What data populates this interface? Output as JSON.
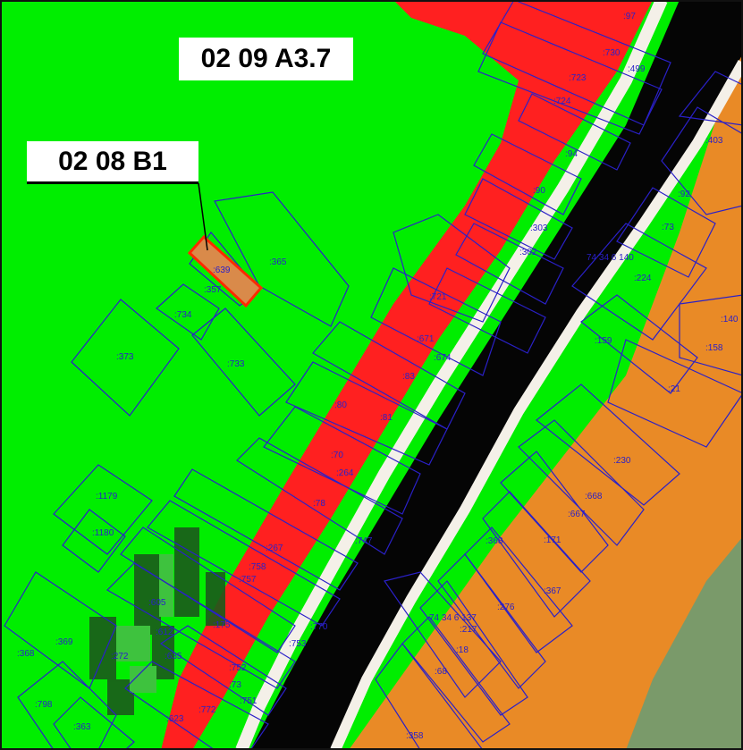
{
  "zones": {
    "label_a37": "02 09 A3.7",
    "label_b1": "02 08 B1"
  },
  "colors": {
    "green_zone": "#00ee00",
    "red_zone": "#ff0000",
    "black_road": "#050505",
    "orange_zone": "#e98a26",
    "gray_green": "#7a9a6a",
    "parcel_outline_blue": "#2a20c8",
    "highlight_fill": "#d98a4a",
    "highlight_stroke": "#ff2a00",
    "frame": "#111111"
  },
  "highlighted_parcel": ":639",
  "parcel_numbers": [
    ":97",
    ":730",
    ":499",
    ":723",
    ":724",
    ":94",
    ":90",
    ":303",
    ":302",
    ":365",
    ":639",
    ":357",
    ":734",
    ":373",
    ":733",
    ":721",
    ":671",
    ":674",
    ":83",
    ":80",
    ":81",
    ":70",
    ":264",
    ":78",
    ":747",
    ":267",
    ":758",
    ":757",
    ":175",
    ":753",
    ":770",
    ":752",
    ":73",
    ":751",
    ":772",
    ":623",
    ":1179",
    ":1180",
    ":605",
    ":612",
    ":272",
    ":635",
    ":368",
    ":369",
    ":798",
    ":363",
    ":358",
    ":68",
    ":18",
    ":217",
    "74 34 6 137",
    ":276",
    ":367",
    ":368",
    ":171",
    ":667",
    ":668",
    ":230",
    ":159",
    ":21",
    ":158",
    ":140",
    ":224",
    ":73",
    ":92",
    ":403",
    "74 34 6 140"
  ]
}
